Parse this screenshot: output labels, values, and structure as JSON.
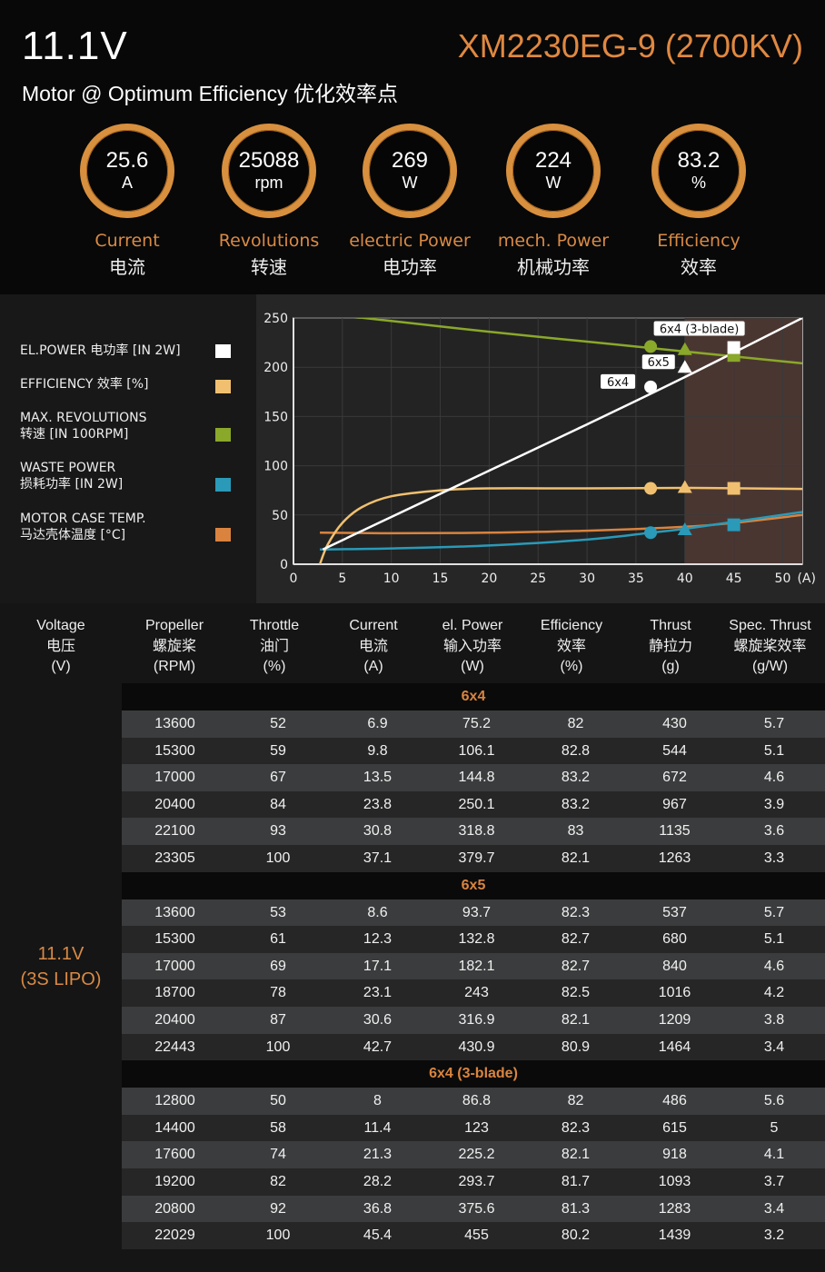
{
  "header": {
    "voltage": "11.1V",
    "model": "XM2230EG-9 (2700KV)",
    "subtitle": "Motor @ Optimum Efficiency  优化效率点"
  },
  "gauges": [
    {
      "value": "25.6",
      "unit": "A",
      "label": "Current",
      "label_cn": "电流"
    },
    {
      "value": "25088",
      "unit": "rpm",
      "label": "Revolutions",
      "label_cn": "转速"
    },
    {
      "value": "269",
      "unit": "W",
      "label": "electric Power",
      "label_cn": "电功率"
    },
    {
      "value": "224",
      "unit": "W",
      "label": "mech. Power",
      "label_cn": "机械功率"
    },
    {
      "value": "83.2",
      "unit": "%",
      "label": "Efficiency",
      "label_cn": "效率"
    }
  ],
  "colors": {
    "accent": "#e08840",
    "el_power": "#ffffff",
    "efficiency": "#f0c070",
    "revolutions": "#8aa82a",
    "waste_power": "#2a9ab8",
    "case_temp": "#d9833f",
    "overload_zone": "#4a3631"
  },
  "chart_data": {
    "type": "line",
    "title": "",
    "xlabel": "(A)",
    "ylabel": "",
    "xlim": [
      0,
      52
    ],
    "ylim": [
      0,
      250
    ],
    "grid": true,
    "x_ticks": [
      "0",
      "5",
      "10",
      "15",
      "20",
      "25",
      "30",
      "35",
      "40",
      "45",
      "50"
    ],
    "x_tick_values": [
      0,
      5,
      10,
      15,
      20,
      25,
      30,
      35,
      40,
      45,
      50
    ],
    "x_unit_label": "(A)",
    "y_ticks": [
      "0",
      "50",
      "100",
      "150",
      "200",
      "250"
    ],
    "y_tick_values": [
      0,
      50,
      100,
      150,
      200,
      250
    ],
    "shaded_region": {
      "from": 40,
      "to": 52
    },
    "legend_position": "left",
    "legend": [
      {
        "label": "EL.POWER 电功率 [IN 2W]",
        "series": "el_power"
      },
      {
        "label": "EFFICIENCY 效率 [%]",
        "series": "efficiency"
      },
      {
        "label": "MAX. REVOLUTIONS",
        "label2": "转速 [IN 100RPM]",
        "series": "revolutions"
      },
      {
        "label": "WASTE POWER",
        "label2": "损耗功率 [IN 2W]",
        "series": "waste_power"
      },
      {
        "label": "MOTOR CASE TEMP.",
        "label2": "马达壳体温度 [°C]",
        "series": "case_temp"
      }
    ],
    "series": [
      {
        "name": "el_power",
        "color": "#ffffff",
        "x": [
          3,
          10,
          20,
          30,
          40,
          52
        ],
        "y": [
          15,
          48,
          95,
          142,
          190,
          250
        ]
      },
      {
        "name": "efficiency",
        "color": "#f0c070",
        "x": [
          2.7,
          3.5,
          5,
          7,
          10,
          15,
          20,
          30,
          40,
          52
        ],
        "y": [
          0,
          20,
          42,
          58,
          69,
          75,
          77,
          77,
          77.5,
          76.5
        ]
      },
      {
        "name": "revolutions",
        "color": "#8aa82a",
        "x": [
          2.7,
          10,
          20,
          30,
          40,
          52
        ],
        "y": [
          255,
          247,
          236,
          226,
          216,
          204
        ]
      },
      {
        "name": "waste_power",
        "color": "#2a9ab8",
        "x": [
          2.7,
          10,
          20,
          30,
          36.5,
          40,
          45,
          52
        ],
        "y": [
          15,
          16,
          19,
          25,
          32,
          36,
          43,
          53
        ]
      },
      {
        "name": "case_temp",
        "color": "#d9833f",
        "x": [
          2.7,
          10,
          20,
          30,
          40,
          45,
          52
        ],
        "y": [
          32,
          31.5,
          32,
          34,
          38,
          42,
          50
        ]
      }
    ],
    "markers": [
      {
        "prop": "6x4",
        "shape": "circle",
        "x": 36.5,
        "el_power": 180,
        "efficiency": 77,
        "revolutions": 221,
        "waste_power": 32
      },
      {
        "prop": "6x5",
        "shape": "triangle",
        "x": 40,
        "el_power": 200,
        "efficiency": 78,
        "revolutions": 218,
        "waste_power": 35
      },
      {
        "prop": "6x4 (3-blade)",
        "shape": "square",
        "x": 45,
        "el_power": 220,
        "efficiency": 77,
        "revolutions": 212,
        "waste_power": 40
      }
    ]
  },
  "table": {
    "headers": [
      [
        "Voltage",
        "电压",
        "(V)"
      ],
      [
        "Propeller",
        "螺旋桨",
        "(RPM)"
      ],
      [
        "Throttle",
        "油门",
        "(%)"
      ],
      [
        "Current",
        "电流",
        "(A)"
      ],
      [
        "el. Power",
        "输入功率",
        "(W)"
      ],
      [
        "Efficiency",
        "效率",
        "(%)"
      ],
      [
        "Thrust",
        "静拉力",
        "(g)"
      ],
      [
        "Spec. Thrust",
        "螺旋桨效率",
        "(g/W)"
      ]
    ],
    "voltage_label": [
      "11.1V",
      "(3S LIPO)"
    ],
    "groups": [
      {
        "name": "6x4",
        "rows": [
          [
            "13600",
            "52",
            "6.9",
            "75.2",
            "82",
            "430",
            "5.7"
          ],
          [
            "15300",
            "59",
            "9.8",
            "106.1",
            "82.8",
            "544",
            "5.1"
          ],
          [
            "17000",
            "67",
            "13.5",
            "144.8",
            "83.2",
            "672",
            "4.6"
          ],
          [
            "20400",
            "84",
            "23.8",
            "250.1",
            "83.2",
            "967",
            "3.9"
          ],
          [
            "22100",
            "93",
            "30.8",
            "318.8",
            "83",
            "1135",
            "3.6"
          ],
          [
            "23305",
            "100",
            "37.1",
            "379.7",
            "82.1",
            "1263",
            "3.3"
          ]
        ]
      },
      {
        "name": "6x5",
        "rows": [
          [
            "13600",
            "53",
            "8.6",
            "93.7",
            "82.3",
            "537",
            "5.7"
          ],
          [
            "15300",
            "61",
            "12.3",
            "132.8",
            "82.7",
            "680",
            "5.1"
          ],
          [
            "17000",
            "69",
            "17.1",
            "182.1",
            "82.7",
            "840",
            "4.6"
          ],
          [
            "18700",
            "78",
            "23.1",
            "243",
            "82.5",
            "1016",
            "4.2"
          ],
          [
            "20400",
            "87",
            "30.6",
            "316.9",
            "82.1",
            "1209",
            "3.8"
          ],
          [
            "22443",
            "100",
            "42.7",
            "430.9",
            "80.9",
            "1464",
            "3.4"
          ]
        ]
      },
      {
        "name": "6x4 (3-blade)",
        "rows": [
          [
            "12800",
            "50",
            "8",
            "86.8",
            "82",
            "486",
            "5.6"
          ],
          [
            "14400",
            "58",
            "11.4",
            "123",
            "82.3",
            "615",
            "5"
          ],
          [
            "17600",
            "74",
            "21.3",
            "225.2",
            "82.1",
            "918",
            "4.1"
          ],
          [
            "19200",
            "82",
            "28.2",
            "293.7",
            "81.7",
            "1093",
            "3.7"
          ],
          [
            "20800",
            "92",
            "36.8",
            "375.6",
            "81.3",
            "1283",
            "3.4"
          ],
          [
            "22029",
            "100",
            "45.4",
            "455",
            "80.2",
            "1439",
            "3.2"
          ]
        ]
      }
    ]
  }
}
